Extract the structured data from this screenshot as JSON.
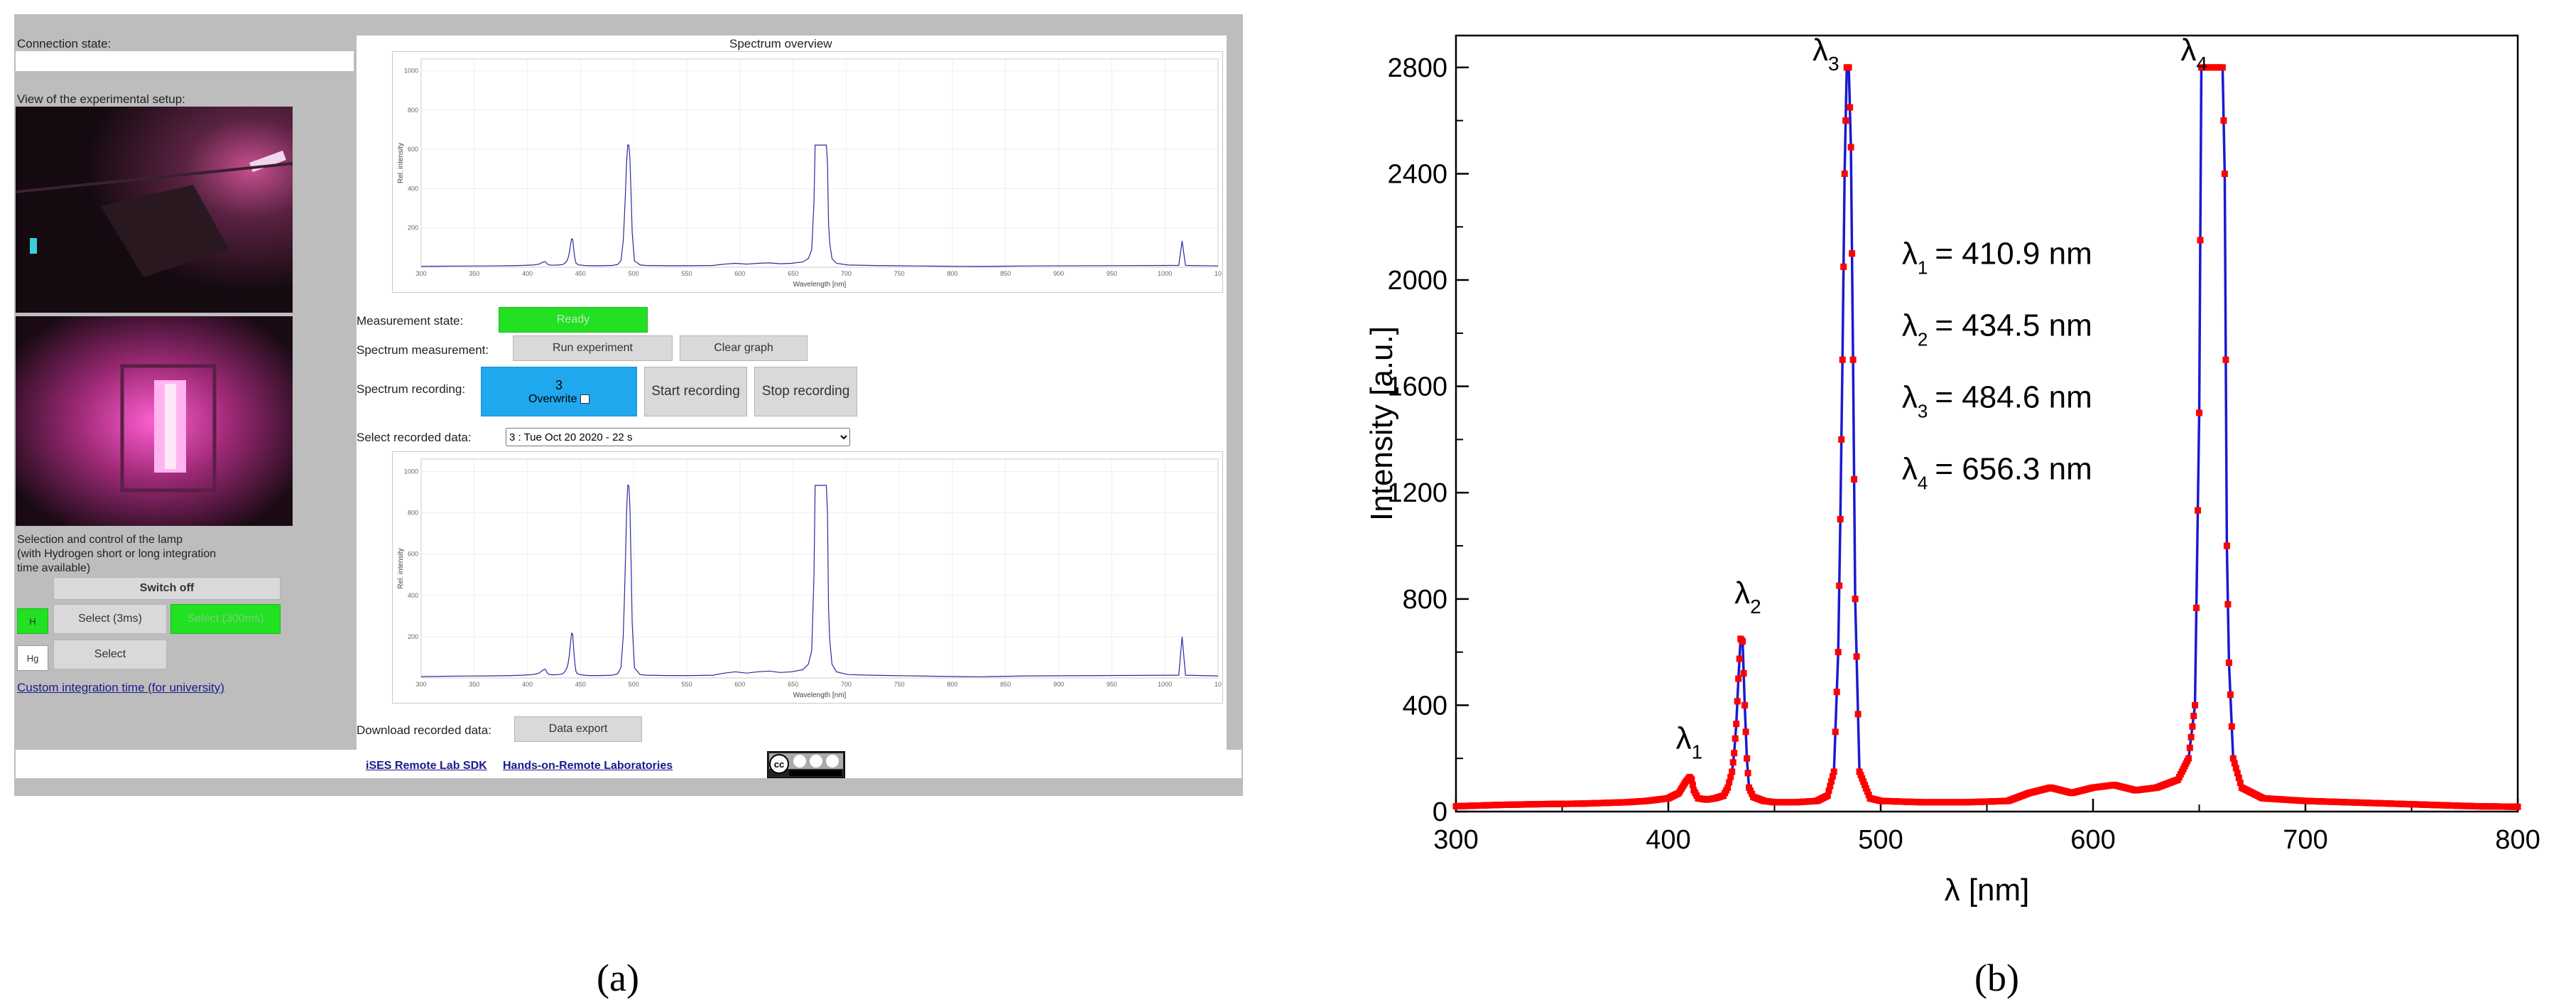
{
  "panel_a": {
    "connection_label": "Connection state:",
    "setup_label": "View of the experimental setup:",
    "lamp_control_label": "Selection and control of the lamp\n(with Hydrogen short or long integration\ntime available)",
    "switch_off": "Switch off",
    "lamp_h": "H",
    "select_3ms": "Select (3ms)",
    "select_300ms": "Select (300ms)",
    "lamp_hg": "Hg",
    "select": "Select",
    "custom_integration": "Custom integration time (for university)",
    "spectrum_overview": "Spectrum overview",
    "measurement_state_label": "Measurement state:",
    "measurement_state_value": "Ready",
    "spectrum_measurement_label": "Spectrum measurement:",
    "run_experiment": "Run experiment",
    "clear_graph": "Clear graph",
    "spectrum_recording_label": "Spectrum recording:",
    "recording_count": "3",
    "overwrite": "Overwrite",
    "start_recording": "Start recording",
    "stop_recording": "Stop recording",
    "select_recorded_label": "Select recorded data:",
    "select_recorded_value": "3 : Tue Oct 20 2020 - 22 s",
    "download_label": "Download recorded data:",
    "data_export": "Data export",
    "footer_link_1": "iSES Remote Lab SDK",
    "footer_link_2": "Hands-on-Remote Laboratories",
    "cc_badge": "cc-by-nc-sa",
    "mini_chart": {
      "ylabel": "Rel. intensity",
      "xlabel": "Wavelength [nm]",
      "x_ticks": [
        "300",
        "350",
        "400",
        "450",
        "500",
        "550",
        "600",
        "650",
        "700",
        "750",
        "800",
        "850",
        "900",
        "950",
        "1000",
        "10"
      ],
      "y_ticks_top": [
        "1000",
        "800",
        "600",
        "400",
        "200"
      ],
      "y_ticks_bottom": [
        "1000",
        "800",
        "600",
        "400",
        "200"
      ]
    },
    "letter": "(a)"
  },
  "panel_b": {
    "letter": "(b)",
    "chart_data": {
      "type": "line",
      "xlabel": "λ [nm]",
      "ylabel": "Intensity [a.u.]",
      "xlim": [
        300,
        800
      ],
      "ylim": [
        0,
        2800
      ],
      "x_ticks": [
        300,
        400,
        500,
        600,
        700,
        800
      ],
      "y_ticks": [
        0,
        400,
        800,
        1200,
        1600,
        2000,
        2400,
        2800
      ],
      "peaks": [
        {
          "label": "λ1",
          "x": 410.9,
          "y": 130
        },
        {
          "label": "λ2",
          "x": 434.5,
          "y": 650
        },
        {
          "label": "λ3",
          "x": 484.6,
          "y": 2800
        },
        {
          "label": "λ4",
          "x": 656.3,
          "y": 2800
        }
      ],
      "annotations": [
        {
          "sym": "λ",
          "sub": "1",
          "value": "= 410.9 nm"
        },
        {
          "sym": "λ",
          "sub": "2",
          "value": "= 434.5 nm"
        },
        {
          "sym": "λ",
          "sub": "3",
          "value": "= 484.6 nm"
        },
        {
          "sym": "λ",
          "sub": "4",
          "value": "= 656.3 nm"
        }
      ],
      "series_colors": {
        "line": "#1a1ad0",
        "markers": "#ff0000"
      },
      "series": [
        {
          "x": [
            300,
            320,
            340,
            360,
            380,
            390,
            400,
            405,
            408,
            410,
            411,
            412,
            414,
            418,
            422,
            426,
            428,
            430,
            431,
            432,
            433,
            434,
            435,
            436,
            437,
            438,
            440,
            445,
            450,
            460,
            470,
            475,
            478,
            480,
            481,
            482,
            483,
            484,
            485,
            486,
            487,
            488,
            490,
            495,
            500,
            520,
            540,
            560,
            570,
            580,
            585,
            590,
            600,
            610,
            620,
            630,
            640,
            645,
            648,
            650,
            651,
            652,
            654,
            656,
            658,
            660,
            661,
            662,
            663,
            664,
            666,
            670,
            680,
            700,
            720,
            740,
            760,
            780,
            800
          ],
          "y": [
            20,
            25,
            28,
            30,
            35,
            40,
            50,
            70,
            110,
            130,
            120,
            80,
            50,
            45,
            50,
            60,
            90,
            150,
            220,
            330,
            500,
            650,
            640,
            400,
            200,
            90,
            55,
            40,
            35,
            35,
            40,
            60,
            150,
            600,
            1100,
            1700,
            2400,
            2800,
            2800,
            2500,
            1700,
            800,
            150,
            50,
            40,
            35,
            35,
            40,
            70,
            90,
            80,
            70,
            90,
            100,
            80,
            90,
            120,
            200,
            400,
            1500,
            2800,
            2800,
            2800,
            2800,
            2800,
            2800,
            2800,
            2400,
            1000,
            560,
            200,
            90,
            50,
            40,
            35,
            30,
            25,
            20,
            18
          ]
        }
      ]
    }
  }
}
